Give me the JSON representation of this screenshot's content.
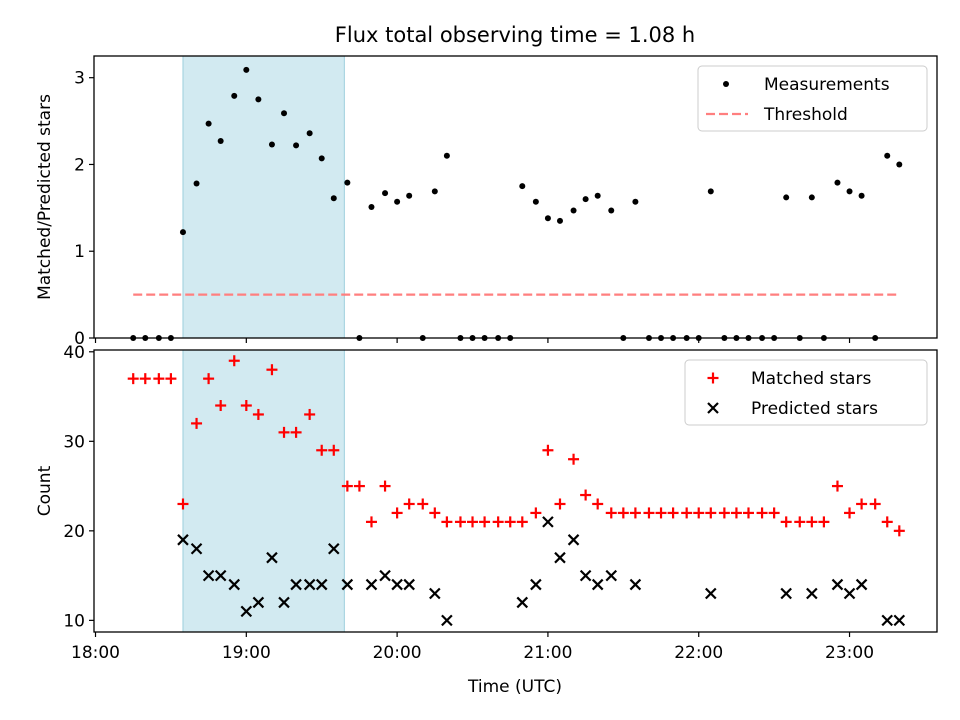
{
  "chart_data": {
    "title": "Flux total observing time = 1.08 h",
    "xlabel": "Time (UTC)",
    "x_tick_labels": [
      "18:00",
      "19:00",
      "20:00",
      "21:00",
      "22:00",
      "23:00"
    ],
    "x_ticks_hours": [
      18,
      19,
      20,
      21,
      22,
      23
    ],
    "xlim_hours": [
      17.99,
      23.58
    ],
    "shaded_interval_hours": [
      18.58,
      19.65
    ],
    "shade_color": "#add8e6",
    "panels": [
      {
        "type": "scatter",
        "ylabel": "Matched/Predicted stars",
        "ylim": [
          0,
          3.25
        ],
        "y_ticks": [
          0,
          1,
          2,
          3
        ],
        "legend_position": "top-right",
        "series": [
          {
            "name": "Measurements",
            "marker": "dot",
            "color": "#000000",
            "points": [
              [
                18.25,
                0
              ],
              [
                18.33,
                0
              ],
              [
                18.42,
                0
              ],
              [
                18.5,
                0
              ],
              [
                18.58,
                1.22
              ],
              [
                18.67,
                1.78
              ],
              [
                18.75,
                2.47
              ],
              [
                18.83,
                2.27
              ],
              [
                18.92,
                2.79
              ],
              [
                19.0,
                3.09
              ],
              [
                19.08,
                2.75
              ],
              [
                19.17,
                2.23
              ],
              [
                19.25,
                2.59
              ],
              [
                19.33,
                2.22
              ],
              [
                19.42,
                2.36
              ],
              [
                19.5,
                2.07
              ],
              [
                19.58,
                1.61
              ],
              [
                19.67,
                1.79
              ],
              [
                19.75,
                0
              ],
              [
                19.83,
                1.51
              ],
              [
                19.92,
                1.67
              ],
              [
                20.0,
                1.57
              ],
              [
                20.08,
                1.64
              ],
              [
                20.17,
                0
              ],
              [
                20.25,
                1.69
              ],
              [
                20.33,
                2.1
              ],
              [
                20.42,
                0
              ],
              [
                20.5,
                0
              ],
              [
                20.58,
                0
              ],
              [
                20.67,
                0
              ],
              [
                20.75,
                0
              ],
              [
                20.83,
                1.75
              ],
              [
                20.92,
                1.57
              ],
              [
                21.0,
                1.38
              ],
              [
                21.08,
                1.35
              ],
              [
                21.17,
                1.47
              ],
              [
                21.25,
                1.6
              ],
              [
                21.33,
                1.64
              ],
              [
                21.42,
                1.47
              ],
              [
                21.5,
                0
              ],
              [
                21.58,
                1.57
              ],
              [
                21.67,
                0
              ],
              [
                21.75,
                0
              ],
              [
                21.83,
                0
              ],
              [
                21.92,
                0
              ],
              [
                22.0,
                0
              ],
              [
                22.08,
                1.69
              ],
              [
                22.17,
                0
              ],
              [
                22.25,
                0
              ],
              [
                22.33,
                0
              ],
              [
                22.42,
                0
              ],
              [
                22.5,
                0
              ],
              [
                22.58,
                1.62
              ],
              [
                22.67,
                0
              ],
              [
                22.75,
                1.62
              ],
              [
                22.83,
                0
              ],
              [
                22.92,
                1.79
              ],
              [
                23.0,
                1.69
              ],
              [
                23.08,
                1.64
              ],
              [
                23.17,
                0
              ],
              [
                23.25,
                2.1
              ],
              [
                23.33,
                2.0
              ]
            ]
          },
          {
            "name": "Threshold",
            "style": "dashed-line",
            "color": "#ff7f7f",
            "x_hours": [
              18.25,
              23.33
            ],
            "y": 0.5
          }
        ]
      },
      {
        "type": "scatter",
        "ylabel": "Count",
        "ylim": [
          8.7,
          40.2
        ],
        "y_ticks": [
          10,
          20,
          30,
          40
        ],
        "legend_position": "top-right",
        "series": [
          {
            "name": "Matched stars",
            "marker": "plus",
            "color": "#ff0000",
            "points": [
              [
                18.25,
                37
              ],
              [
                18.33,
                37
              ],
              [
                18.42,
                37
              ],
              [
                18.5,
                37
              ],
              [
                18.58,
                23
              ],
              [
                18.67,
                32
              ],
              [
                18.75,
                37
              ],
              [
                18.83,
                34
              ],
              [
                18.92,
                39
              ],
              [
                19.0,
                34
              ],
              [
                19.08,
                33
              ],
              [
                19.17,
                38
              ],
              [
                19.25,
                31
              ],
              [
                19.33,
                31
              ],
              [
                19.42,
                33
              ],
              [
                19.5,
                29
              ],
              [
                19.58,
                29
              ],
              [
                19.67,
                25
              ],
              [
                19.75,
                25
              ],
              [
                19.83,
                21
              ],
              [
                19.92,
                25
              ],
              [
                20.0,
                22
              ],
              [
                20.08,
                23
              ],
              [
                20.17,
                23
              ],
              [
                20.25,
                22
              ],
              [
                20.33,
                21
              ],
              [
                20.42,
                21
              ],
              [
                20.5,
                21
              ],
              [
                20.58,
                21
              ],
              [
                20.67,
                21
              ],
              [
                20.75,
                21
              ],
              [
                20.83,
                21
              ],
              [
                20.92,
                22
              ],
              [
                21.0,
                29
              ],
              [
                21.08,
                23
              ],
              [
                21.17,
                28
              ],
              [
                21.25,
                24
              ],
              [
                21.33,
                23
              ],
              [
                21.42,
                22
              ],
              [
                21.5,
                22
              ],
              [
                21.58,
                22
              ],
              [
                21.67,
                22
              ],
              [
                21.75,
                22
              ],
              [
                21.83,
                22
              ],
              [
                21.92,
                22
              ],
              [
                22.0,
                22
              ],
              [
                22.08,
                22
              ],
              [
                22.17,
                22
              ],
              [
                22.25,
                22
              ],
              [
                22.33,
                22
              ],
              [
                22.42,
                22
              ],
              [
                22.5,
                22
              ],
              [
                22.58,
                21
              ],
              [
                22.67,
                21
              ],
              [
                22.75,
                21
              ],
              [
                22.83,
                21
              ],
              [
                22.92,
                25
              ],
              [
                23.0,
                22
              ],
              [
                23.08,
                23
              ],
              [
                23.17,
                23
              ],
              [
                23.25,
                21
              ],
              [
                23.33,
                20
              ]
            ]
          },
          {
            "name": "Predicted stars",
            "marker": "x",
            "color": "#000000",
            "points": [
              [
                18.58,
                19
              ],
              [
                18.67,
                18
              ],
              [
                18.75,
                15
              ],
              [
                18.83,
                15
              ],
              [
                18.92,
                14
              ],
              [
                19.0,
                11
              ],
              [
                19.08,
                12
              ],
              [
                19.17,
                17
              ],
              [
                19.25,
                12
              ],
              [
                19.33,
                14
              ],
              [
                19.42,
                14
              ],
              [
                19.5,
                14
              ],
              [
                19.58,
                18
              ],
              [
                19.67,
                14
              ],
              [
                19.83,
                14
              ],
              [
                19.92,
                15
              ],
              [
                20.0,
                14
              ],
              [
                20.08,
                14
              ],
              [
                20.25,
                13
              ],
              [
                20.33,
                10
              ],
              [
                20.83,
                12
              ],
              [
                20.92,
                14
              ],
              [
                21.0,
                21
              ],
              [
                21.08,
                17
              ],
              [
                21.17,
                19
              ],
              [
                21.25,
                15
              ],
              [
                21.33,
                14
              ],
              [
                21.42,
                15
              ],
              [
                21.58,
                14
              ],
              [
                22.08,
                13
              ],
              [
                22.58,
                13
              ],
              [
                22.75,
                13
              ],
              [
                22.92,
                14
              ],
              [
                23.0,
                13
              ],
              [
                23.08,
                14
              ],
              [
                23.25,
                10
              ],
              [
                23.33,
                10
              ]
            ]
          }
        ]
      }
    ]
  }
}
